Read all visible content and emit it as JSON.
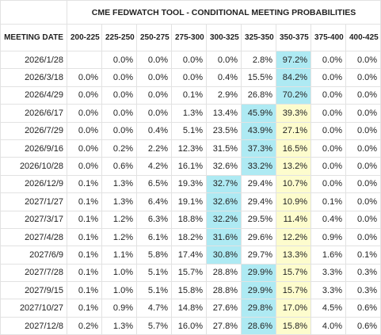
{
  "title": "CME FEDWATCH TOOL - CONDITIONAL MEETING PROBABILITIES",
  "row_header": "MEETING DATE",
  "columns": [
    "200-225",
    "225-250",
    "250-275",
    "275-300",
    "300-325",
    "325-350",
    "350-375",
    "375-400",
    "400-425"
  ],
  "max_color": "#aeeaf3",
  "current_color": "#fdfccd",
  "current_column": 6,
  "rows": [
    {
      "date": "2026/1/28",
      "cells": [
        null,
        "0.0%",
        "0.0%",
        "0.0%",
        "0.0%",
        "2.8%",
        "97.2%",
        "0.0%",
        "0.0%"
      ]
    },
    {
      "date": "2026/3/18",
      "cells": [
        "0.0%",
        "0.0%",
        "0.0%",
        "0.0%",
        "0.4%",
        "15.5%",
        "84.2%",
        "0.0%",
        "0.0%"
      ]
    },
    {
      "date": "2026/4/29",
      "cells": [
        "0.0%",
        "0.0%",
        "0.0%",
        "0.1%",
        "2.9%",
        "26.8%",
        "70.2%",
        "0.0%",
        "0.0%"
      ]
    },
    {
      "date": "2026/6/17",
      "cells": [
        "0.0%",
        "0.0%",
        "0.0%",
        "1.3%",
        "13.4%",
        "45.9%",
        "39.3%",
        "0.0%",
        "0.0%"
      ]
    },
    {
      "date": "2026/7/29",
      "cells": [
        "0.0%",
        "0.0%",
        "0.4%",
        "5.1%",
        "23.5%",
        "43.9%",
        "27.1%",
        "0.0%",
        "0.0%"
      ]
    },
    {
      "date": "2026/9/16",
      "cells": [
        "0.0%",
        "0.2%",
        "2.2%",
        "12.3%",
        "31.5%",
        "37.3%",
        "16.5%",
        "0.0%",
        "0.0%"
      ]
    },
    {
      "date": "2026/10/28",
      "cells": [
        "0.0%",
        "0.6%",
        "4.2%",
        "16.1%",
        "32.6%",
        "33.2%",
        "13.2%",
        "0.0%",
        "0.0%"
      ]
    },
    {
      "date": "2026/12/9",
      "cells": [
        "0.1%",
        "1.3%",
        "6.5%",
        "19.3%",
        "32.7%",
        "29.4%",
        "10.7%",
        "0.0%",
        "0.0%"
      ]
    },
    {
      "date": "2027/1/27",
      "cells": [
        "0.1%",
        "1.3%",
        "6.4%",
        "19.1%",
        "32.6%",
        "29.4%",
        "10.9%",
        "0.1%",
        "0.0%"
      ]
    },
    {
      "date": "2027/3/17",
      "cells": [
        "0.1%",
        "1.2%",
        "6.3%",
        "18.8%",
        "32.2%",
        "29.5%",
        "11.4%",
        "0.4%",
        "0.0%"
      ]
    },
    {
      "date": "2027/4/28",
      "cells": [
        "0.1%",
        "1.2%",
        "6.1%",
        "18.2%",
        "31.6%",
        "29.6%",
        "12.2%",
        "0.9%",
        "0.0%"
      ]
    },
    {
      "date": "2027/6/9",
      "cells": [
        "0.1%",
        "1.1%",
        "5.8%",
        "17.4%",
        "30.8%",
        "29.7%",
        "13.3%",
        "1.6%",
        "0.1%"
      ]
    },
    {
      "date": "2027/7/28",
      "cells": [
        "0.1%",
        "1.0%",
        "5.1%",
        "15.7%",
        "28.8%",
        "29.9%",
        "15.7%",
        "3.3%",
        "0.3%"
      ]
    },
    {
      "date": "2027/9/15",
      "cells": [
        "0.1%",
        "1.0%",
        "5.1%",
        "15.8%",
        "28.8%",
        "29.9%",
        "15.7%",
        "3.3%",
        "0.3%"
      ]
    },
    {
      "date": "2027/10/27",
      "cells": [
        "0.1%",
        "0.9%",
        "4.7%",
        "14.8%",
        "27.6%",
        "29.8%",
        "17.0%",
        "4.5%",
        "0.6%"
      ]
    },
    {
      "date": "2027/12/8",
      "cells": [
        "0.2%",
        "1.3%",
        "5.7%",
        "16.0%",
        "27.8%",
        "28.6%",
        "15.8%",
        "4.0%",
        "0.6%"
      ]
    }
  ]
}
